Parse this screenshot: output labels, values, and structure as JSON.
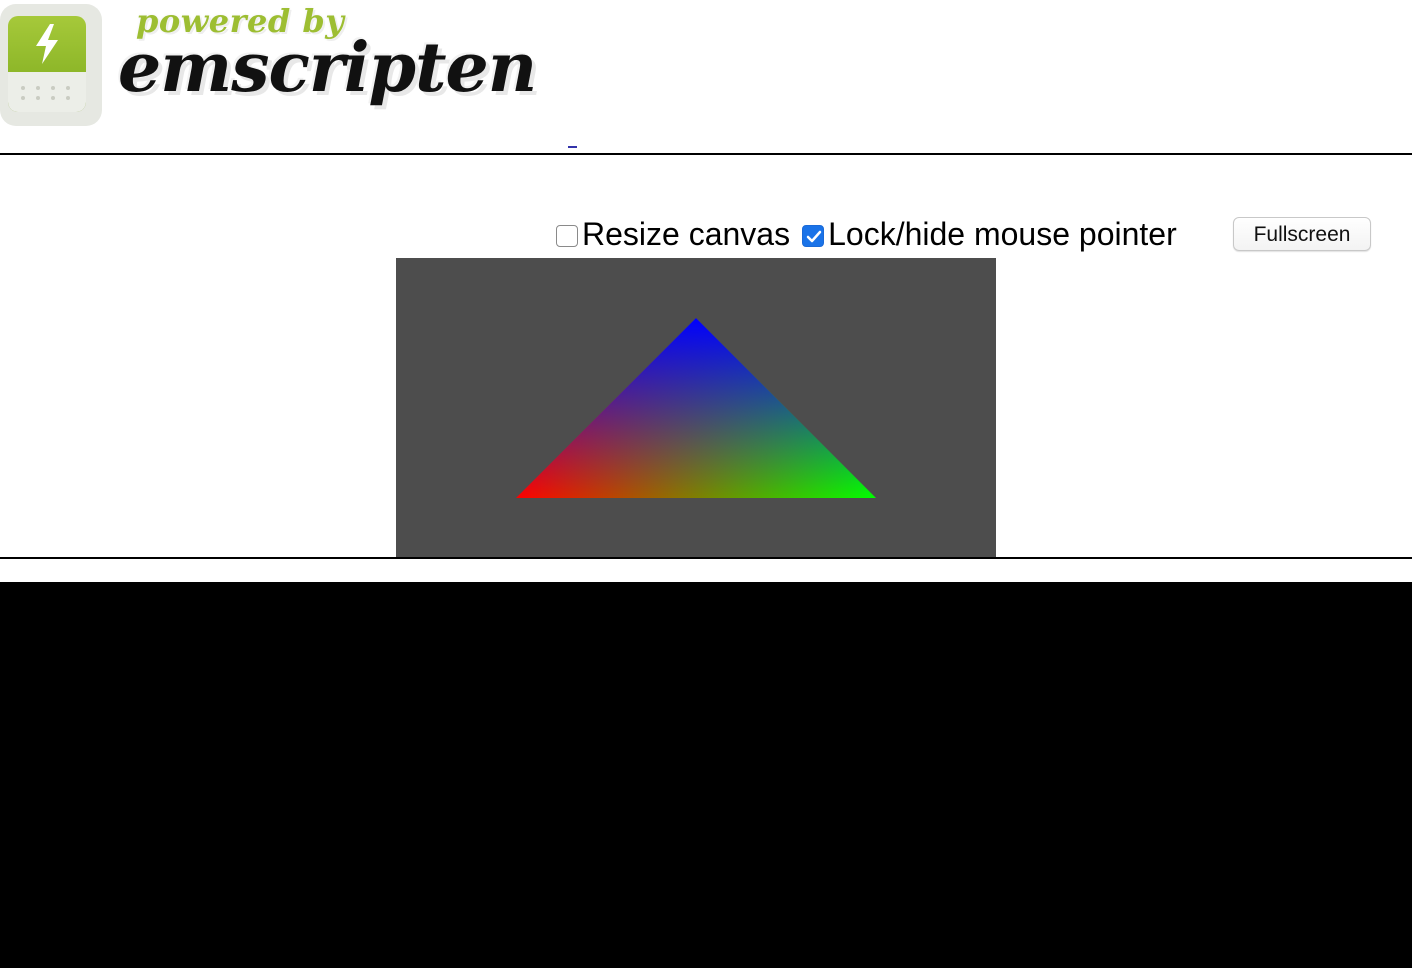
{
  "header": {
    "logo_powered_by": "powered by",
    "logo_main": "emscripten",
    "logo_icon": "emscripten-logo-icon"
  },
  "controls": {
    "resize_canvas": {
      "label": "Resize canvas",
      "checked": false
    },
    "lock_pointer": {
      "label": "Lock/hide mouse pointer",
      "checked": true
    },
    "fullscreen_label": "Fullscreen"
  },
  "canvas": {
    "background": "#4d4d4d",
    "vertex_colors": [
      "#0000ff",
      "#ff0000",
      "#00ff00"
    ]
  },
  "console": {
    "output": ""
  },
  "colors": {
    "accent_green": "#9dbe32",
    "checkbox_blue": "#1a73e8",
    "console_bg": "#000000"
  }
}
